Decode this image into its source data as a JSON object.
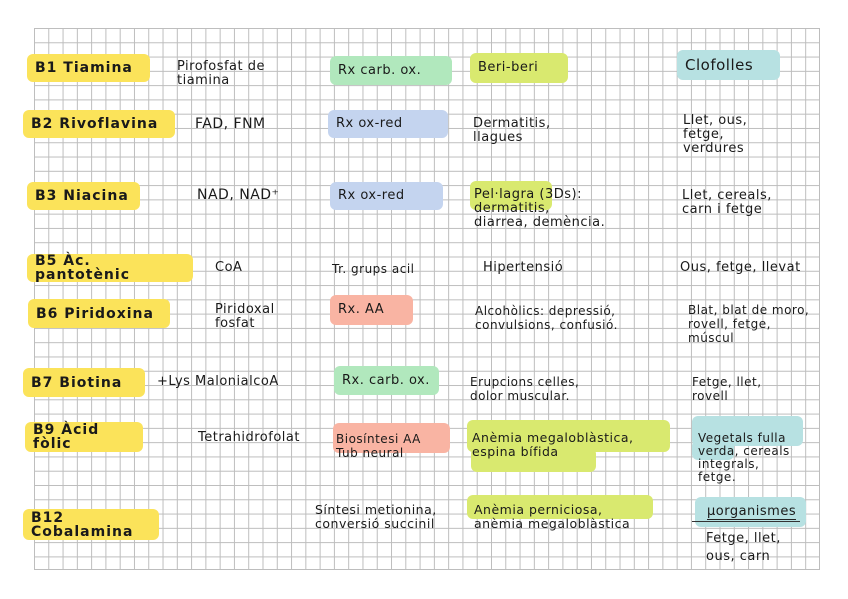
{
  "rows": [
    {
      "vitamin": "B1 Tiamina",
      "coenzyme": "Pirofosfat de\ntiamina",
      "function": "Rx  carb. ox.",
      "disease": "Beri-beri",
      "sources": "Clofolles"
    },
    {
      "vitamin": "B2 Rivoflavina",
      "coenzyme": "FAD, FNM",
      "function": "Rx  ox-red",
      "disease": "Dermatitis,\nllagues",
      "sources": "Llet, ous,\nfetge,\nverdures"
    },
    {
      "vitamin": "B3 Niacina",
      "coenzyme": "NAD, NAD⁺",
      "function": "Rx  ox-red",
      "disease_highlight": "Pel·lagra",
      "disease": " (3Ds):\ndermatitis,\ndiarrea, demència.",
      "sources": "Llet, cereals,\ncarn i fetge"
    },
    {
      "vitamin": "B5 Àc. pantotènic",
      "coenzyme": "CoA",
      "function": "Tr. grups acil",
      "disease": "Hipertensió",
      "sources": "Ous, fetge, llevat"
    },
    {
      "vitamin": "B6 Piridoxina",
      "coenzyme": "Piridoxal\nfosfat",
      "function": "Rx. AA",
      "disease": "Alcohòlics: depressió,\nconvulsions, confusió.",
      "sources": "Blat, blat de moro,\nrovell, fetge,\nmúscul"
    },
    {
      "vitamin": "B7 Biotina",
      "coenzyme": "+Lys  MalonialcoA",
      "function": "Rx. carb. ox.",
      "disease": "Erupcions celles,\ndolor muscular.",
      "sources": "Fetge, llet,\nrovell"
    },
    {
      "vitamin": "B9 Àcid fòlic",
      "coenzyme": "Tetrahidrofolat",
      "function": "Biosíntesi AA\nTub neural",
      "disease": "Anèmia megaloblàstica,\nespina bífida",
      "sources": "Vegetals fulla\nverda, cereals\nintegrals,\nfetge."
    },
    {
      "vitamin": "B12 Cobalamina",
      "coenzyme": "",
      "function": "Síntesi metionina,\nconversió succinil",
      "disease": "Anèmia perniciosa,\nanèmia megaloblàstica",
      "sources_heading": "μorganismes",
      "sources": "Fetge, llet,\nous, carn"
    }
  ],
  "colors": {
    "vitamin": "#fbe35a",
    "carb_ox": "#b1e8bd",
    "ox_red": "#c4d4ef",
    "aa": "#f9b4a3",
    "disease": "#d9e96f",
    "sources": "#b7e1e2"
  }
}
